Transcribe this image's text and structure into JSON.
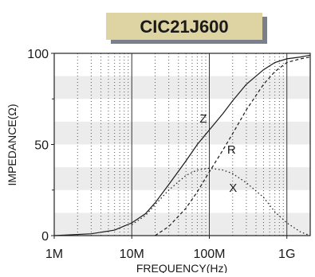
{
  "chart_data": {
    "type": "line",
    "title": "CIC21J600",
    "xlabel": "FREQUENCY(Hz)",
    "ylabel": "IMPEDANCE(Ω)",
    "x_scale": "log",
    "xlim": [
      1000000,
      2000000000
    ],
    "ylim": [
      0,
      100
    ],
    "x_ticks": [
      {
        "value": 1000000,
        "label": "1M"
      },
      {
        "value": 10000000,
        "label": "10M"
      },
      {
        "value": 100000000,
        "label": "100M"
      },
      {
        "value": 1000000000,
        "label": "1G"
      }
    ],
    "y_ticks": [
      {
        "value": 0,
        "label": "0"
      },
      {
        "value": 50,
        "label": "50"
      },
      {
        "value": 100,
        "label": "100"
      }
    ],
    "grid": true,
    "series": [
      {
        "name": "Z",
        "style": "solid",
        "label_at": [
          75000000,
          62
        ],
        "points": [
          [
            1000000,
            0
          ],
          [
            3000000,
            1
          ],
          [
            6000000,
            3
          ],
          [
            10000000,
            7
          ],
          [
            15000000,
            12
          ],
          [
            20000000,
            18
          ],
          [
            30000000,
            28
          ],
          [
            50000000,
            41
          ],
          [
            70000000,
            50
          ],
          [
            100000000,
            58
          ],
          [
            150000000,
            67
          ],
          [
            200000000,
            74
          ],
          [
            300000000,
            83
          ],
          [
            500000000,
            91
          ],
          [
            700000000,
            95
          ],
          [
            1000000000,
            97
          ],
          [
            1500000000,
            98
          ],
          [
            2000000000,
            99
          ]
        ]
      },
      {
        "name": "R",
        "style": "dashed",
        "label_at": [
          170000000,
          45
        ],
        "points": [
          [
            20000000,
            0
          ],
          [
            30000000,
            5
          ],
          [
            50000000,
            15
          ],
          [
            70000000,
            24
          ],
          [
            100000000,
            35
          ],
          [
            150000000,
            47
          ],
          [
            200000000,
            56
          ],
          [
            300000000,
            69
          ],
          [
            500000000,
            83
          ],
          [
            700000000,
            90
          ],
          [
            1000000000,
            95
          ],
          [
            1500000000,
            97
          ],
          [
            2000000000,
            98
          ]
        ]
      },
      {
        "name": "X",
        "style": "dotted",
        "label_at": [
          180000000,
          24
        ],
        "points": [
          [
            10000000,
            6
          ],
          [
            15000000,
            11
          ],
          [
            20000000,
            17
          ],
          [
            30000000,
            25
          ],
          [
            50000000,
            33
          ],
          [
            70000000,
            36
          ],
          [
            100000000,
            37
          ],
          [
            150000000,
            36
          ],
          [
            200000000,
            34
          ],
          [
            300000000,
            29
          ],
          [
            500000000,
            21
          ],
          [
            700000000,
            13
          ],
          [
            1000000000,
            7
          ],
          [
            1500000000,
            2
          ],
          [
            2000000000,
            0
          ]
        ]
      }
    ],
    "band_color": "#ececec",
    "title_bg": "#ddd3a3",
    "title_shadow": "#7a7f8a"
  }
}
